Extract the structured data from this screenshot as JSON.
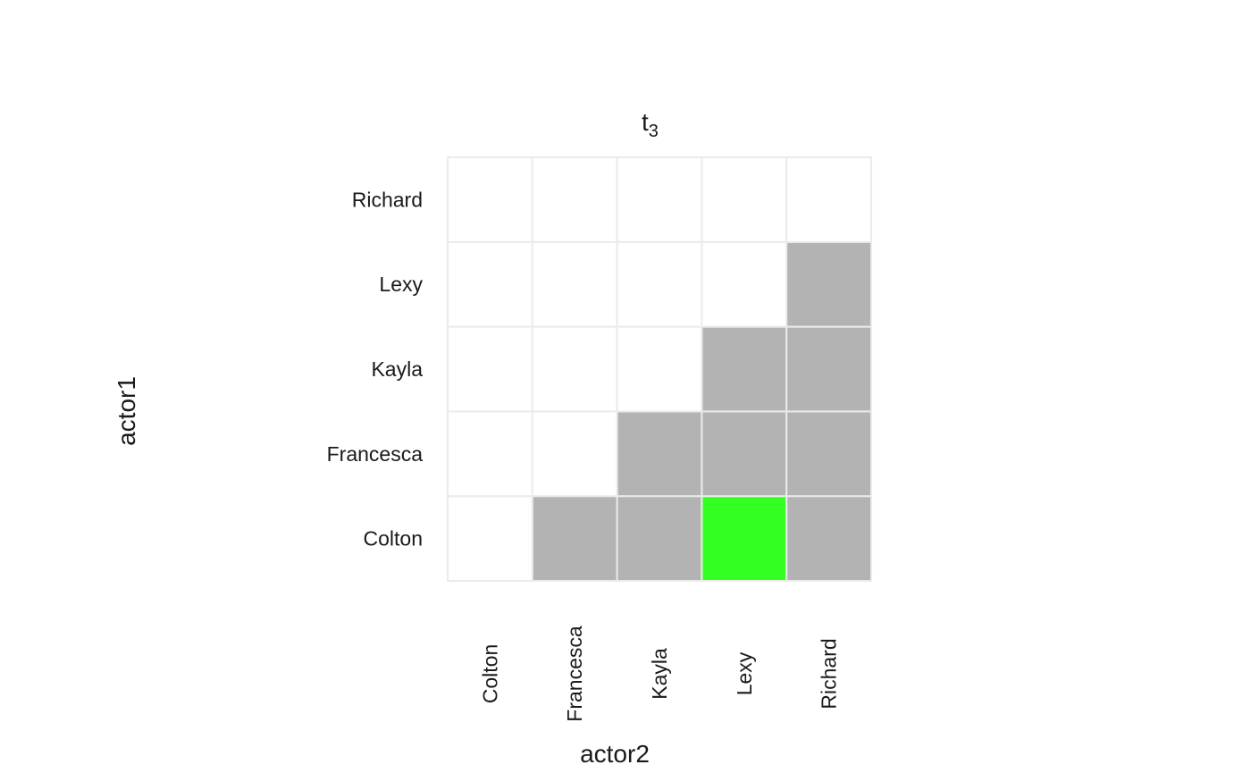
{
  "chart_data": {
    "type": "heatmap",
    "title": "t",
    "title_subscript": "3",
    "xlabel": "actor2",
    "ylabel": "actor1",
    "x_categories": [
      "Colton",
      "Francesca",
      "Kayla",
      "Lexy",
      "Richard"
    ],
    "y_categories_bottom_to_top": [
      "Colton",
      "Francesca",
      "Kayla",
      "Lexy",
      "Richard"
    ],
    "colors": {
      "empty": "#ffffff",
      "tie": "#b3b3b3",
      "highlight": "#33ff22",
      "gridline": "#ebebeb"
    },
    "cells": [
      [
        "empty",
        "tie",
        "tie",
        "highlight",
        "tie"
      ],
      [
        "empty",
        "empty",
        "tie",
        "tie",
        "tie"
      ],
      [
        "empty",
        "empty",
        "empty",
        "tie",
        "tie"
      ],
      [
        "empty",
        "empty",
        "empty",
        "empty",
        "tie"
      ],
      [
        "empty",
        "empty",
        "empty",
        "empty",
        "empty"
      ]
    ]
  }
}
